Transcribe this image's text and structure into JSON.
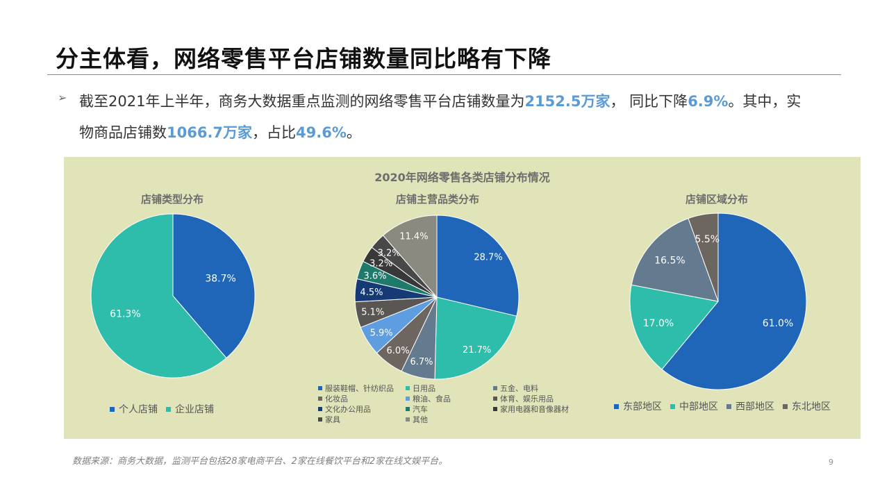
{
  "slide": {
    "title": "分主体看，网络零售平台店铺数量同比略有下降",
    "bullet_icon": "arrow-right-icon",
    "text_parts": [
      {
        "t": "截至2021年上半年，商务大数据重点监测的网络零售平台店铺数量为",
        "hl": false
      },
      {
        "t": "2152.5万家",
        "hl": true
      },
      {
        "t": "， 同比下降",
        "hl": false
      },
      {
        "t": "6.9%",
        "hl": true
      },
      {
        "t": "。其中，实物商品店铺数",
        "hl": false
      },
      {
        "t": "1066.7万家",
        "hl": true
      },
      {
        "t": "，占比",
        "hl": false
      },
      {
        "t": "49.6%",
        "hl": true
      },
      {
        "t": "。",
        "hl": false
      }
    ],
    "source": "数据来源：商务大数据，监测平台包括28家电商平台、2家在线餐饮平台和2家在线文娱平台。",
    "page_number": "9",
    "highlight_color": "#5b9bd5",
    "panel_color": "#e1e4b8"
  },
  "chart_data": [
    {
      "type": "pie",
      "title": "2020年网络零售各类店铺分布情况",
      "subtitle": "店铺类型分布",
      "categories": [
        "个人店铺",
        "企业店铺"
      ],
      "values": [
        38.7,
        61.3
      ],
      "labels": [
        "38.7%",
        "61.3%"
      ],
      "colors": [
        "#1f66b8",
        "#2dbdaa"
      ],
      "legend": "bottom"
    },
    {
      "type": "pie",
      "subtitle": "店铺主营品类分布",
      "categories": [
        "服装鞋帽、针纺织品",
        "日用品",
        "五金、电料",
        "化妆品",
        "粮油、食品",
        "体育、娱乐用品",
        "文化办公用品",
        "汽车",
        "家用电器和音像器材",
        "家具",
        "其他"
      ],
      "values": [
        28.7,
        21.7,
        6.7,
        6.0,
        5.9,
        5.1,
        4.5,
        3.6,
        3.2,
        3.2,
        11.4
      ],
      "labels": [
        "28.7%",
        "21.7%",
        "6.7%",
        "6.0%",
        "5.9%",
        "5.1%",
        "4.5%",
        "3.6%",
        "3.2%",
        "3.2%",
        "11.4%"
      ],
      "colors": [
        "#1f66b8",
        "#2dbdaa",
        "#637a8f",
        "#6d6560",
        "#5d9de0",
        "#5a5652",
        "#163a75",
        "#1e7a6a",
        "#383838",
        "#484848",
        "#8a8a80"
      ],
      "legend": "bottom"
    },
    {
      "type": "pie",
      "subtitle": "店铺区域分布",
      "categories": [
        "东部地区",
        "中部地区",
        "西部地区",
        "东北地区"
      ],
      "values": [
        61.0,
        17.0,
        16.5,
        5.5
      ],
      "labels": [
        "61.0%",
        "17.0%",
        "16.5%",
        "5.5%"
      ],
      "colors": [
        "#1f66b8",
        "#2dbdaa",
        "#637a8f",
        "#6d6560"
      ],
      "legend": "bottom"
    }
  ]
}
